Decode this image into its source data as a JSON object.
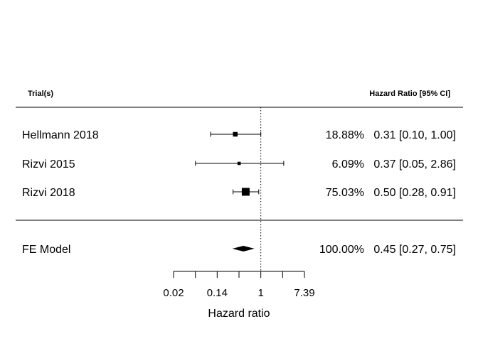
{
  "chart_data": {
    "type": "forest",
    "header": {
      "left": "Trial(s)",
      "right": "Hazard Ratio [95% CI]"
    },
    "studies": [
      {
        "label": "Hellmann 2018",
        "hr": 0.31,
        "lower": 0.1,
        "upper": 1.0,
        "weight": 18.88,
        "weight_text": "18.88%",
        "ci_text": "0.31 [0.10, 1.00]"
      },
      {
        "label": "Rizvi 2015",
        "hr": 0.37,
        "lower": 0.05,
        "upper": 2.86,
        "weight": 6.09,
        "weight_text": "6.09%",
        "ci_text": "0.37 [0.05, 2.86]"
      },
      {
        "label": "Rizvi 2018",
        "hr": 0.5,
        "lower": 0.28,
        "upper": 0.91,
        "weight": 75.03,
        "weight_text": "75.03%",
        "ci_text": "0.50 [0.28, 0.91]"
      }
    ],
    "summary": {
      "label": "FE Model",
      "hr": 0.45,
      "lower": 0.27,
      "upper": 0.75,
      "weight_text": "100.00%",
      "ci_text": "0.45 [0.27, 0.75]"
    },
    "xlabel": "Hazard ratio",
    "x_scale": "log",
    "x_ticks": [
      {
        "value": 0.0183,
        "label": "0.02"
      },
      {
        "value": 0.0498,
        "label": ""
      },
      {
        "value": 0.1353,
        "label": "0.14"
      },
      {
        "value": 0.3679,
        "label": ""
      },
      {
        "value": 1.0,
        "label": "1"
      },
      {
        "value": 2.7183,
        "label": ""
      },
      {
        "value": 7.3891,
        "label": "7.39"
      }
    ],
    "reference_line": 1
  }
}
